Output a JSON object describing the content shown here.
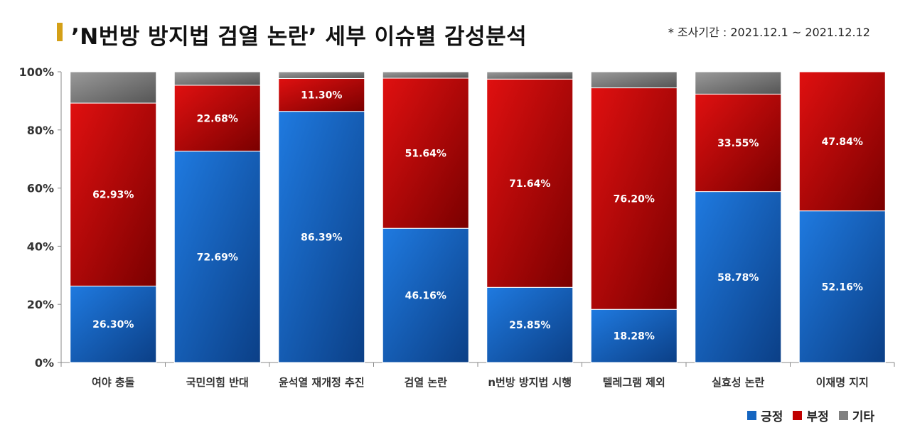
{
  "header": {
    "title": "’N번방 방지법 검열 논란’ 세부 이슈별 감성분석",
    "period": "* 조사기간 : 2021.12.1 ~ 2021.12.12"
  },
  "chart_data": {
    "type": "bar",
    "stacked": true,
    "categories": [
      "여야 충돌",
      "국민의힘 반대",
      "윤석열 재개정 추진",
      "검열 논란",
      "n번방 방지법 시행",
      "텔레그램 제외",
      "실효성 논란",
      "이재명 지지"
    ],
    "series": [
      {
        "name": "긍정",
        "color": "#1565c0",
        "values": [
          26.3,
          72.69,
          86.39,
          46.16,
          25.85,
          18.28,
          58.78,
          52.16
        ]
      },
      {
        "name": "부정",
        "color": "#c00000",
        "values": [
          62.93,
          22.68,
          11.3,
          51.64,
          71.64,
          76.2,
          33.55,
          47.84
        ]
      },
      {
        "name": "기타",
        "color": "#808080",
        "values": [
          10.77,
          4.63,
          2.31,
          2.2,
          2.51,
          5.52,
          7.67,
          0
        ]
      }
    ],
    "labels": {
      "긍정": [
        "26.30%",
        "72.69%",
        "86.39%",
        "46.16%",
        "25.85%",
        "18.28%",
        "58.78%",
        "52.16%"
      ],
      "부정": [
        "62.93%",
        "22.68%",
        "11.30%",
        "51.64%",
        "71.64%",
        "76.20%",
        "33.55%",
        "47.84%"
      ]
    },
    "ylim": [
      0,
      100
    ],
    "yticks": [
      "0%",
      "20%",
      "40%",
      "60%",
      "80%",
      "100%"
    ],
    "xlabel": "",
    "ylabel": "",
    "grid": false,
    "legend_position": "bottom-right"
  }
}
